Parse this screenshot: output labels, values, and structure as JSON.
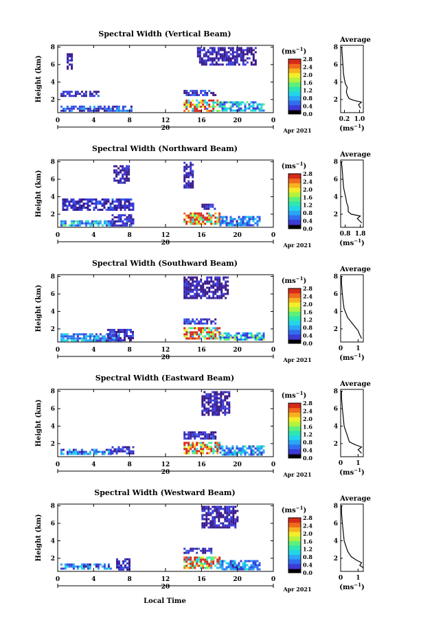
{
  "figure": {
    "xlabel": "Local Time",
    "date_label": "Apr 2021",
    "day_label": "20",
    "ylabel": "Height (km)",
    "unit_label": "(ms",
    "unit_sup": "−1",
    "avg_title": "Average",
    "colorbar_ticks": [
      "0.0",
      "0.4",
      "0.8",
      "1.2",
      "1.6",
      "2.0",
      "2.4",
      "2.8"
    ],
    "palette": [
      "#3a1a8a",
      "#3b3bd6",
      "#2f6ff0",
      "#2aa6f5",
      "#22d6e8",
      "#2ee6b0",
      "#5ef07a",
      "#b6f23c",
      "#f2ee2a",
      "#f7b21e",
      "#f06a1c",
      "#d62a1a"
    ]
  },
  "chart_data": [
    {
      "type": "heatmap",
      "title": "Spectral Width (Vertical Beam)",
      "xlabel": "Local Time",
      "ylabel": "Height (km)",
      "x_ticks": [
        "0",
        "4",
        "8",
        "12",
        "16",
        "20",
        "0"
      ],
      "y_ticks": [
        "2",
        "4",
        "6",
        "8"
      ],
      "xlim": [
        0,
        24
      ],
      "ylim": [
        0.5,
        8.2
      ],
      "cbar_range": [
        0,
        2.8
      ],
      "blocks": [
        {
          "t0": 0.3,
          "t1": 8.3,
          "h0": 0.7,
          "h1": 1.3,
          "v": 0.5
        },
        {
          "t0": 0.3,
          "t1": 4.5,
          "h0": 2.5,
          "h1": 3.0,
          "v": 0.3
        },
        {
          "t0": 1.0,
          "t1": 1.6,
          "h0": 5.6,
          "h1": 7.3,
          "v": 0.2
        },
        {
          "t0": 14.0,
          "t1": 18.0,
          "h0": 0.8,
          "h1": 2.0,
          "v": 2.2
        },
        {
          "t0": 18.0,
          "t1": 23.0,
          "h0": 0.8,
          "h1": 1.8,
          "v": 0.9
        },
        {
          "t0": 14.0,
          "t1": 17.5,
          "h0": 2.6,
          "h1": 3.1,
          "v": 0.3
        },
        {
          "t0": 15.5,
          "t1": 22.0,
          "h0": 6.0,
          "h1": 8.0,
          "v": 0.2
        }
      ],
      "avg_profile": {
        "xlabel": "(ms",
        "xsup": "−1",
        "x_ticks": [
          "0.2",
          "1.0"
        ],
        "xlim": [
          0.0,
          1.2
        ],
        "y_ticks": [
          "2",
          "4",
          "6",
          "8"
        ],
        "ylim": [
          0.5,
          8.2
        ],
        "points": [
          [
            1.05,
            1.0
          ],
          [
            0.95,
            1.4
          ],
          [
            1.1,
            1.7
          ],
          [
            0.7,
            1.9
          ],
          [
            0.45,
            2.1
          ],
          [
            0.35,
            2.5
          ],
          [
            0.3,
            2.9
          ],
          [
            0.35,
            3.4
          ],
          [
            0.25,
            3.8
          ],
          [
            0.2,
            4.3
          ],
          [
            0.15,
            5.0
          ],
          [
            0.12,
            6.0
          ],
          [
            0.08,
            7.2
          ],
          [
            0.06,
            8.0
          ]
        ]
      }
    },
    {
      "type": "heatmap",
      "title": "Spectral Width (Northward Beam)",
      "xlabel": "Local Time",
      "ylabel": "Height (km)",
      "x_ticks": [
        "0",
        "4",
        "8",
        "12",
        "16",
        "20",
        "0"
      ],
      "y_ticks": [
        "2",
        "4",
        "6",
        "8"
      ],
      "xlim": [
        0,
        24
      ],
      "ylim": [
        0.5,
        8.2
      ],
      "cbar_range": [
        0,
        2.8
      ],
      "blocks": [
        {
          "t0": 0.3,
          "t1": 6.0,
          "h0": 0.7,
          "h1": 1.3,
          "v": 0.9
        },
        {
          "t0": 6.0,
          "t1": 8.3,
          "h0": 0.8,
          "h1": 2.0,
          "v": 0.3
        },
        {
          "t0": 0.5,
          "t1": 8.3,
          "h0": 2.5,
          "h1": 3.8,
          "v": 0.3
        },
        {
          "t0": 6.2,
          "t1": 8.0,
          "h0": 5.5,
          "h1": 7.6,
          "v": 0.2
        },
        {
          "t0": 14.0,
          "t1": 18.0,
          "h0": 0.8,
          "h1": 2.2,
          "v": 2.4
        },
        {
          "t0": 18.0,
          "t1": 22.5,
          "h0": 0.8,
          "h1": 1.8,
          "v": 0.6
        },
        {
          "t0": 16.0,
          "t1": 17.5,
          "h0": 2.5,
          "h1": 3.2,
          "v": 0.3
        },
        {
          "t0": 14.0,
          "t1": 15.0,
          "h0": 5.0,
          "h1": 8.0,
          "v": 0.2
        }
      ],
      "avg_profile": {
        "xlabel": "(ms",
        "xsup": "−1",
        "x_ticks": [
          "0.8",
          "1.8"
        ],
        "xlim": [
          0.5,
          2.0
        ],
        "y_ticks": [
          "2",
          "4",
          "6",
          "8"
        ],
        "ylim": [
          0.5,
          8.2
        ],
        "points": [
          [
            1.9,
            1.0
          ],
          [
            1.6,
            1.5
          ],
          [
            1.8,
            1.8
          ],
          [
            1.2,
            2.0
          ],
          [
            1.0,
            2.3
          ],
          [
            1.0,
            2.8
          ],
          [
            0.9,
            3.3
          ],
          [
            0.85,
            3.8
          ],
          [
            0.8,
            4.2
          ],
          [
            0.7,
            5.0
          ],
          [
            0.65,
            6.0
          ],
          [
            0.6,
            7.2
          ],
          [
            0.55,
            8.0
          ]
        ]
      }
    },
    {
      "type": "heatmap",
      "title": "Spectral Width (Southward Beam)",
      "xlabel": "Local Time",
      "ylabel": "Height (km)",
      "x_ticks": [
        "0",
        "4",
        "8",
        "12",
        "16",
        "20",
        "0"
      ],
      "y_ticks": [
        "2",
        "4",
        "6",
        "8"
      ],
      "xlim": [
        0,
        24
      ],
      "ylim": [
        0.5,
        8.2
      ],
      "cbar_range": [
        0,
        2.8
      ],
      "blocks": [
        {
          "t0": 0.3,
          "t1": 7.0,
          "h0": 0.7,
          "h1": 1.5,
          "v": 0.7
        },
        {
          "t0": 5.5,
          "t1": 8.3,
          "h0": 0.8,
          "h1": 2.0,
          "v": 0.3
        },
        {
          "t0": 14.0,
          "t1": 18.0,
          "h0": 0.8,
          "h1": 2.2,
          "v": 2.4
        },
        {
          "t0": 18.0,
          "t1": 23.0,
          "h0": 0.8,
          "h1": 1.6,
          "v": 1.0
        },
        {
          "t0": 14.0,
          "t1": 17.5,
          "h0": 2.6,
          "h1": 3.2,
          "v": 0.3
        },
        {
          "t0": 14.0,
          "t1": 19.0,
          "h0": 5.5,
          "h1": 8.0,
          "v": 0.2
        }
      ],
      "avg_profile": {
        "xlabel": "(ms",
        "xsup": "−1",
        "x_ticks": [
          "0",
          "1"
        ],
        "xlim": [
          0,
          1.3
        ],
        "y_ticks": [
          "2",
          "4",
          "6",
          "8"
        ],
        "ylim": [
          0.5,
          8.2
        ],
        "points": [
          [
            1.2,
            0.9
          ],
          [
            1.1,
            1.3
          ],
          [
            1.0,
            1.8
          ],
          [
            0.8,
            2.3
          ],
          [
            0.6,
            2.8
          ],
          [
            0.4,
            3.3
          ],
          [
            0.3,
            3.8
          ],
          [
            0.2,
            4.3
          ],
          [
            0.15,
            5.0
          ],
          [
            0.1,
            6.0
          ],
          [
            0.05,
            7.2
          ],
          [
            0.05,
            8.0
          ]
        ]
      }
    },
    {
      "type": "heatmap",
      "title": "Spectral Width (Eastward Beam)",
      "xlabel": "Local Time",
      "ylabel": "Height (km)",
      "x_ticks": [
        "0",
        "4",
        "8",
        "12",
        "16",
        "20",
        "0"
      ],
      "y_ticks": [
        "2",
        "4",
        "6",
        "8"
      ],
      "xlim": [
        0,
        24
      ],
      "ylim": [
        0.5,
        8.2
      ],
      "cbar_range": [
        0,
        2.8
      ],
      "blocks": [
        {
          "t0": 0.3,
          "t1": 6.0,
          "h0": 0.7,
          "h1": 1.4,
          "v": 0.7
        },
        {
          "t0": 6.0,
          "t1": 8.3,
          "h0": 0.8,
          "h1": 1.7,
          "v": 0.3
        },
        {
          "t0": 14.0,
          "t1": 18.0,
          "h0": 0.8,
          "h1": 2.2,
          "v": 2.4
        },
        {
          "t0": 18.0,
          "t1": 23.0,
          "h0": 0.8,
          "h1": 1.8,
          "v": 0.8
        },
        {
          "t0": 14.0,
          "t1": 17.5,
          "h0": 2.6,
          "h1": 3.4,
          "v": 0.3
        },
        {
          "t0": 16.0,
          "t1": 19.0,
          "h0": 5.2,
          "h1": 8.0,
          "v": 0.2
        }
      ],
      "avg_profile": {
        "xlabel": "(ms",
        "xsup": "−1",
        "x_ticks": [
          "0",
          "1"
        ],
        "xlim": [
          0,
          1.3
        ],
        "y_ticks": [
          "2",
          "4",
          "6",
          "8"
        ],
        "ylim": [
          0.5,
          8.2
        ],
        "points": [
          [
            1.2,
            0.9
          ],
          [
            1.0,
            1.3
          ],
          [
            1.2,
            1.6
          ],
          [
            0.8,
            1.9
          ],
          [
            0.5,
            2.2
          ],
          [
            0.4,
            2.8
          ],
          [
            0.3,
            3.4
          ],
          [
            0.2,
            4.0
          ],
          [
            0.15,
            5.0
          ],
          [
            0.1,
            6.0
          ],
          [
            0.05,
            7.2
          ],
          [
            0.05,
            8.0
          ]
        ]
      }
    },
    {
      "type": "heatmap",
      "title": "Spectral Width (Westward Beam)",
      "xlabel": "Local Time",
      "ylabel": "Height (km)",
      "x_ticks": [
        "0",
        "4",
        "8",
        "12",
        "16",
        "20",
        "0"
      ],
      "y_ticks": [
        "2",
        "4",
        "6",
        "8"
      ],
      "xlim": [
        0,
        24
      ],
      "ylim": [
        0.5,
        8.2
      ],
      "cbar_range": [
        0,
        2.8
      ],
      "blocks": [
        {
          "t0": 0.3,
          "t1": 6.0,
          "h0": 0.7,
          "h1": 1.4,
          "v": 0.6
        },
        {
          "t0": 6.5,
          "t1": 8.0,
          "h0": 0.8,
          "h1": 2.0,
          "v": 0.3
        },
        {
          "t0": 14.0,
          "t1": 18.0,
          "h0": 0.8,
          "h1": 2.2,
          "v": 2.4
        },
        {
          "t0": 18.0,
          "t1": 22.5,
          "h0": 0.8,
          "h1": 1.8,
          "v": 0.7
        },
        {
          "t0": 14.0,
          "t1": 17.0,
          "h0": 2.6,
          "h1": 3.2,
          "v": 0.3
        },
        {
          "t0": 16.0,
          "t1": 20.0,
          "h0": 5.5,
          "h1": 8.0,
          "v": 0.2
        }
      ],
      "avg_profile": {
        "xlabel": "(ms",
        "xsup": "−1",
        "x_ticks": [
          "0",
          "1"
        ],
        "xlim": [
          0,
          1.3
        ],
        "y_ticks": [
          "2",
          "4",
          "6",
          "8"
        ],
        "ylim": [
          0.5,
          8.2
        ],
        "points": [
          [
            1.3,
            0.9
          ],
          [
            1.1,
            1.2
          ],
          [
            1.2,
            1.5
          ],
          [
            0.9,
            1.8
          ],
          [
            0.6,
            2.2
          ],
          [
            0.4,
            2.8
          ],
          [
            0.3,
            3.4
          ],
          [
            0.2,
            4.0
          ],
          [
            0.15,
            5.0
          ],
          [
            0.1,
            6.0
          ],
          [
            0.05,
            7.2
          ],
          [
            0.05,
            8.0
          ]
        ]
      }
    }
  ]
}
